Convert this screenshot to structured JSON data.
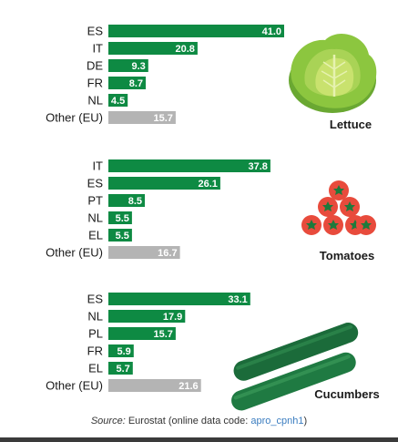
{
  "colors": {
    "member_bar": "#0e8a43",
    "other_bar": "#b4b4b4",
    "lettuce_outer": "#8cc63f",
    "lettuce_inner": "#c9e26e",
    "tomato": "#e84b3c",
    "tomato_stem": "#1e7a3c",
    "cucumber": "#1b6b3a",
    "link": "#3b7dc0"
  },
  "chart_data": [
    {
      "type": "bar",
      "orientation": "horizontal",
      "title": "Lettuce",
      "categories": [
        "ES",
        "IT",
        "DE",
        "FR",
        "NL",
        "Other (EU)"
      ],
      "values": [
        41.0,
        20.8,
        9.3,
        8.7,
        4.5,
        15.7
      ],
      "value_labels": [
        "41.0",
        "20.8",
        "9.3",
        "8.7",
        "4.5",
        "15.7"
      ],
      "xlim": [
        0,
        41.0
      ],
      "grid": false,
      "icon": "lettuce-icon"
    },
    {
      "type": "bar",
      "orientation": "horizontal",
      "title": "Tomatoes",
      "categories": [
        "IT",
        "ES",
        "PT",
        "NL",
        "EL",
        "Other (EU)"
      ],
      "values": [
        37.8,
        26.1,
        8.5,
        5.5,
        5.5,
        16.7
      ],
      "value_labels": [
        "37.8",
        "26.1",
        "8.5",
        "5.5",
        "5.5",
        "16.7"
      ],
      "xlim": [
        0,
        41.0
      ],
      "grid": false,
      "icon": "tomatoes-icon"
    },
    {
      "type": "bar",
      "orientation": "horizontal",
      "title": "Cucumbers",
      "categories": [
        "ES",
        "NL",
        "PL",
        "FR",
        "EL",
        "Other (EU)"
      ],
      "values": [
        33.1,
        17.9,
        15.7,
        5.9,
        5.7,
        21.6
      ],
      "value_labels": [
        "33.1",
        "17.9",
        "15.7",
        "5.9",
        "5.7",
        "21.6"
      ],
      "xlim": [
        0,
        41.0
      ],
      "grid": false,
      "icon": "cucumbers-icon"
    }
  ],
  "source": {
    "prefix": "Source:",
    "text": " Eurostat (online data code: ",
    "code": "apro_cpnh1",
    "suffix": ")"
  }
}
